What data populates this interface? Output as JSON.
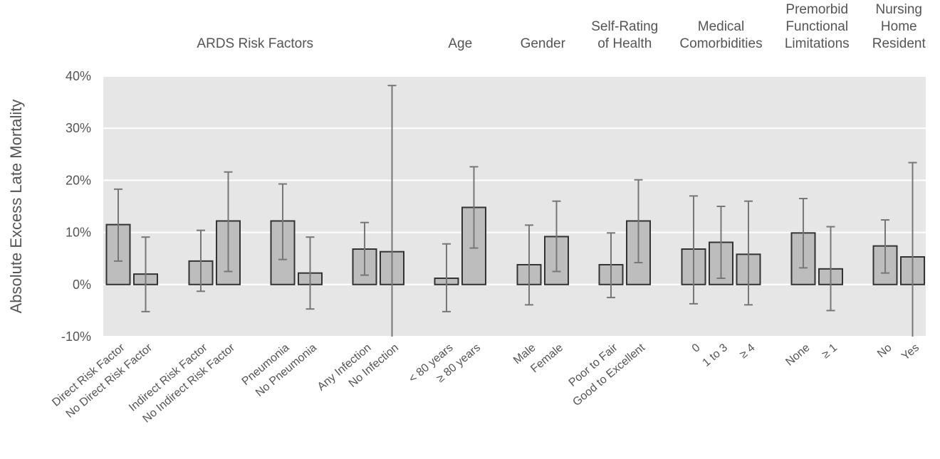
{
  "chart_data": {
    "type": "bar",
    "ylabel": "Absolute Excess Late Mortality",
    "ylim": [
      -10,
      40
    ],
    "yticks": [
      "-10%",
      "0%",
      "10%",
      "20%",
      "30%",
      "40%"
    ],
    "grid": true,
    "colors": {
      "plot_bg": "#e6e6e6",
      "bar_fill": "#bdbdbd",
      "bar_stroke": "#333333",
      "error_bar": "#777777",
      "grid": "#ffffff"
    },
    "groups": [
      {
        "label_lines": [
          "ARDS Risk Factors"
        ],
        "category_indices": [
          0,
          1,
          2,
          3,
          4,
          5,
          6,
          7
        ]
      },
      {
        "label_lines": [
          "Age"
        ],
        "category_indices": [
          8,
          9
        ]
      },
      {
        "label_lines": [
          "Gender"
        ],
        "category_indices": [
          10,
          11
        ]
      },
      {
        "label_lines": [
          "Self-Rating",
          "of Health"
        ],
        "category_indices": [
          12,
          13
        ]
      },
      {
        "label_lines": [
          "Medical",
          "Comorbidities"
        ],
        "category_indices": [
          14,
          15,
          16
        ]
      },
      {
        "label_lines": [
          "Premorbid",
          "Functional",
          "Limitations"
        ],
        "category_indices": [
          17,
          18
        ]
      },
      {
        "label_lines": [
          "Nursing",
          "Home",
          "Resident"
        ],
        "category_indices": [
          19,
          20
        ]
      }
    ],
    "categories": [
      "Direct Risk Factor",
      "No Direct Risk Factor",
      "Indirect Risk Factor",
      "No Indirect Risk Factor",
      "Pneumonia",
      "No Pneumonia",
      "Any Infection",
      "No Infection",
      "< 80 years",
      "≥ 80 years",
      "Male",
      "Female",
      "Poor to Fair",
      "Good to Excellent",
      "0",
      "1 to 3",
      "≥ 4",
      "None",
      "≥ 1",
      "No",
      "Yes"
    ],
    "values": [
      11.5,
      2.0,
      4.5,
      12.2,
      12.2,
      2.2,
      6.8,
      6.3,
      1.2,
      14.8,
      3.8,
      9.2,
      3.8,
      12.2,
      6.8,
      8.1,
      5.8,
      9.9,
      3.0,
      7.4,
      5.3
    ],
    "error_low": [
      4.5,
      -5.2,
      -1.3,
      2.5,
      4.8,
      -4.7,
      1.8,
      -10,
      -5.2,
      7.0,
      -3.9,
      2.5,
      -2.5,
      4.2,
      -3.7,
      1.2,
      -3.9,
      3.2,
      -5.0,
      2.2,
      -10
    ],
    "error_high": [
      18.3,
      9.1,
      10.4,
      21.6,
      19.3,
      9.1,
      11.9,
      38.2,
      7.8,
      22.6,
      11.4,
      16.0,
      9.9,
      20.1,
      17.0,
      15.0,
      16.0,
      16.5,
      11.1,
      12.4,
      23.4
    ]
  }
}
